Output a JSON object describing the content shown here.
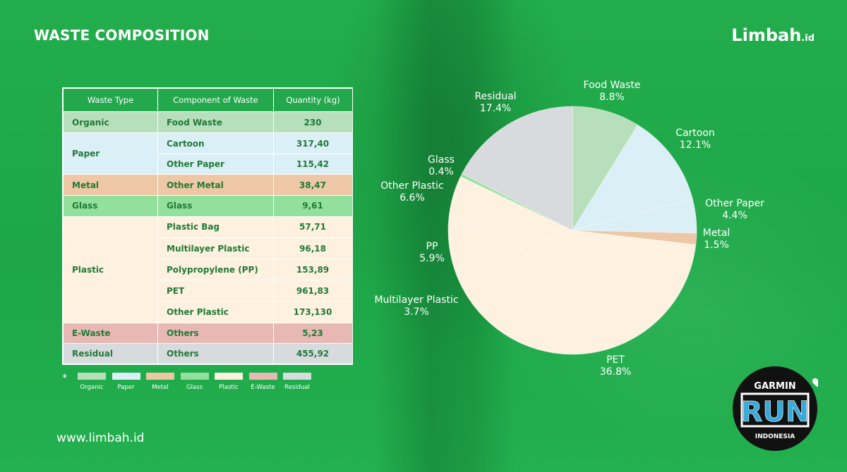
{
  "title": "WASTE COMPOSITION",
  "brand": {
    "name": "Limbah",
    "suffix": ".id"
  },
  "website": "www.limbah.id",
  "table": {
    "headers": [
      "Waste Type",
      "Component of Waste",
      "Quantity (kg)"
    ],
    "groups": [
      {
        "type": "Organic",
        "color": "#b7dfbb",
        "rows": [
          {
            "component": "Food Waste",
            "qty": "230"
          }
        ]
      },
      {
        "type": "Paper",
        "color": "#dbeff6",
        "rows": [
          {
            "component": "Cartoon",
            "qty": "317,40"
          },
          {
            "component": "Other Paper",
            "qty": "115,42"
          }
        ]
      },
      {
        "type": "Metal",
        "color": "#edc7a6",
        "rows": [
          {
            "component": "Other Metal",
            "qty": "38,47"
          }
        ]
      },
      {
        "type": "Glass",
        "color": "#93e09c",
        "rows": [
          {
            "component": "Glass",
            "qty": "9,61"
          }
        ]
      },
      {
        "type": "Plastic",
        "color": "#fef1df",
        "rows": [
          {
            "component": "Plastic Bag",
            "qty": "57,71"
          },
          {
            "component": "Multilayer Plastic",
            "qty": "96,18"
          },
          {
            "component": "Polypropylene (PP)",
            "qty": "153,89"
          },
          {
            "component": "PET",
            "qty": "961,83"
          },
          {
            "component": "Other Plastic",
            "qty": "173,130"
          }
        ]
      },
      {
        "type": "E-Waste",
        "color": "#e8b9b4",
        "rows": [
          {
            "component": "Others",
            "qty": "5,23"
          }
        ]
      },
      {
        "type": "Residual",
        "color": "#d8dbdd",
        "rows": [
          {
            "component": "Others",
            "qty": "455,92"
          }
        ]
      }
    ]
  },
  "legend": {
    "marker": "*",
    "items": [
      {
        "label": "Organic",
        "color": "#b7dfbb"
      },
      {
        "label": "Paper",
        "color": "#dbeff6"
      },
      {
        "label": "Metal",
        "color": "#edc7a6"
      },
      {
        "label": "Glass",
        "color": "#93e09c"
      },
      {
        "label": "Plastic",
        "color": "#fef1df"
      },
      {
        "label": "E-Waste",
        "color": "#e8b9b4"
      },
      {
        "label": "Residual",
        "color": "#d8dbdd"
      }
    ]
  },
  "chart_data": {
    "type": "pie",
    "title": "",
    "start": "top, clockwise",
    "slices": [
      {
        "label": "Food Waste",
        "value": 8.8,
        "display": "8.8%",
        "color": "#b7dfbb"
      },
      {
        "label": "Cartoon",
        "value": 12.1,
        "display": "12.1%",
        "color": "#dbeff6"
      },
      {
        "label": "Other Paper",
        "value": 4.4,
        "display": "4.4%",
        "color": "#dbeff6"
      },
      {
        "label": "Metal",
        "value": 1.5,
        "display": "1.5%",
        "color": "#edc7a6"
      },
      {
        "label": "PET",
        "value": 36.8,
        "display": "36.8%",
        "color": "#fef1df"
      },
      {
        "label": "Multilayer Plastic",
        "value": 3.7,
        "display": "3.7%",
        "color": "#fef1df"
      },
      {
        "label": "",
        "value": 2.2,
        "display": "",
        "color": "#fef1df"
      },
      {
        "label": "PP",
        "value": 5.9,
        "display": "5.9%",
        "color": "#fef1df"
      },
      {
        "label": "Other Plastic",
        "value": 6.6,
        "display": "6.6%",
        "color": "#fef1df"
      },
      {
        "label": "Glass",
        "value": 0.4,
        "display": "0.4%",
        "color": "#93e09c"
      },
      {
        "label": "Residual",
        "value": 17.4,
        "display": "17.4%",
        "color": "#d8dbdd"
      }
    ]
  },
  "garmin": {
    "top": "GARMIN",
    "main": "RUN",
    "bottom": "INDONESIA"
  }
}
